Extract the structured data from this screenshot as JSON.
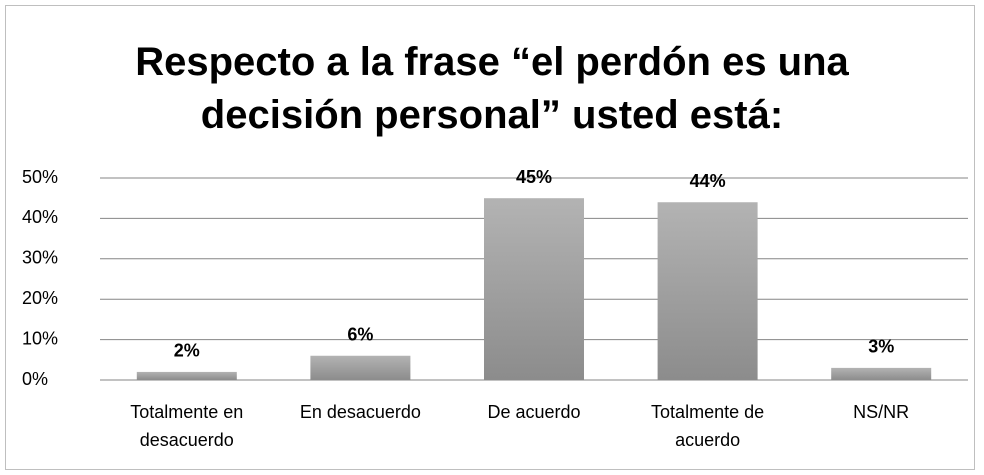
{
  "chart_data": {
    "type": "bar",
    "title": "Respecto a la frase “el perdón es una decisión personal” usted está:",
    "categories": [
      "Totalmente en desacuerdo",
      "En desacuerdo",
      "De acuerdo",
      "Totalmente de acuerdo",
      "NS/NR"
    ],
    "values": [
      2,
      6,
      45,
      44,
      3
    ],
    "value_labels": [
      "2%",
      "6%",
      "45%",
      "44%",
      "3%"
    ],
    "color": "#a6a6a6",
    "ylim": [
      0,
      50
    ],
    "yticks": [
      {
        "value": 0,
        "label": "0%"
      },
      {
        "value": 10,
        "label": "10%"
      },
      {
        "value": 20,
        "label": "20%"
      },
      {
        "value": 30,
        "label": "30%"
      },
      {
        "value": 40,
        "label": "40%"
      },
      {
        "value": 50,
        "label": "50%"
      }
    ],
    "grid": true
  }
}
